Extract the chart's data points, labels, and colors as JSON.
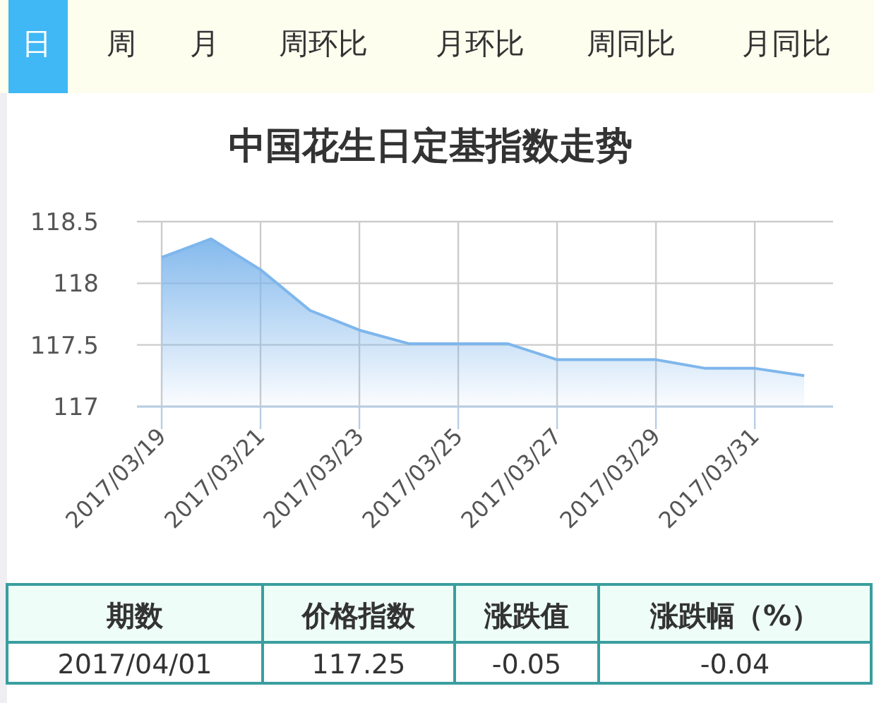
{
  "chart_data": {
    "type": "area",
    "title": "中国花生日定基指数走势",
    "x": [
      "2017-03-19",
      "2017-03-20",
      "2017-03-21",
      "2017-03-22",
      "2017-03-23",
      "2017-03-24",
      "2017-03-25",
      "2017-03-26",
      "2017-03-27",
      "2017-03-28",
      "2017-03-29",
      "2017-03-30",
      "2017-03-31",
      "2017-04-01"
    ],
    "series": [
      {
        "color": "#7eb6ec",
        "values": [
          118.21,
          118.36,
          118.11,
          117.78,
          117.62,
          117.51,
          117.51,
          117.51,
          117.38,
          117.38,
          117.38,
          117.31,
          117.31,
          117.25
        ]
      }
    ],
    "xlim": [
      "2017-03-18T12:00",
      "2017-04-01T14:00"
    ],
    "xticks": [
      {
        "value": "2017-03-19",
        "label": "2017/03/19"
      },
      {
        "value": "2017-03-21",
        "label": "2017/03/21"
      },
      {
        "value": "2017-03-23",
        "label": "2017/03/23"
      },
      {
        "value": "2017-03-25",
        "label": "2017/03/25"
      },
      {
        "value": "2017-03-27",
        "label": "2017/03/27"
      },
      {
        "value": "2017-03-29",
        "label": "2017/03/29"
      },
      {
        "value": "2017-03-31",
        "label": "2017/03/31"
      }
    ],
    "ylim": [
      117,
      118.5
    ],
    "yticks": [
      117,
      117.5,
      118,
      118.5
    ],
    "grid": true,
    "marker": "none",
    "annotations": [
      "日",
      "周",
      "月",
      "周环比",
      "月环比",
      "周同比",
      "月同比",
      "期数",
      "价格指数",
      "涨跌值",
      "涨跌幅（%）",
      "2017/04/01",
      "117.25",
      "-0.05",
      "-0.04"
    ]
  }
}
